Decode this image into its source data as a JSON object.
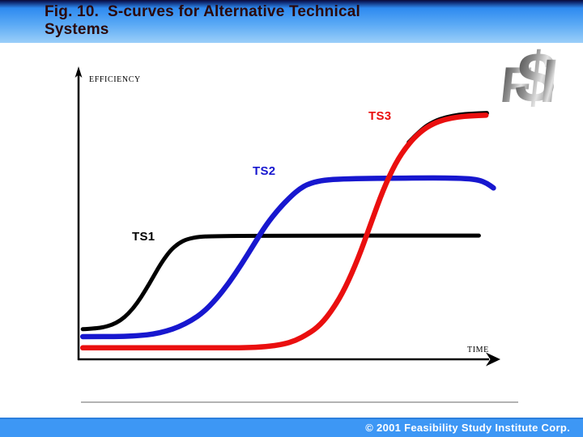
{
  "slide": {
    "title_line1": "Fig. 10.  S-curves for Alternative Technical",
    "title_line2": "Systems",
    "logo_chars": [
      "F",
      "$",
      "I"
    ],
    "footer_copyright": "© 2001 Feasibility Study Institute Corp."
  },
  "colors": {
    "header_gradient_top": "#0b0b38",
    "header_gradient_mid": "#2e8af0",
    "header_gradient_bottom": "#9bcff9",
    "title_text": "#2b0808",
    "logo_gray_dark": "#4a4a4a",
    "logo_gray_light": "#e2e2e2",
    "separator": "#b3b3b3",
    "footer_bg": "#3d97f5",
    "footer_text": "#ffffff",
    "axis": "#000000"
  },
  "chart_data": {
    "type": "line",
    "title": "",
    "xlabel": "TIME",
    "ylabel": "EFFICIENCY",
    "grid": false,
    "axis_ticks": "none",
    "x_range_percent": [
      0,
      100
    ],
    "y_range_percent": [
      0,
      100
    ],
    "series": [
      {
        "name": "TS1",
        "color": "#000000",
        "points": [
          [
            1,
            10.5
          ],
          [
            4,
            10.8
          ],
          [
            6,
            11.2
          ],
          [
            8,
            12
          ],
          [
            10,
            13.5
          ],
          [
            12,
            16
          ],
          [
            14,
            19.5
          ],
          [
            16,
            24
          ],
          [
            18,
            29
          ],
          [
            20,
            34
          ],
          [
            22,
            38
          ],
          [
            24,
            40.5
          ],
          [
            26,
            42
          ],
          [
            29,
            42.8
          ],
          [
            33,
            43
          ],
          [
            40,
            43.1
          ],
          [
            50,
            43.1
          ],
          [
            62,
            43.2
          ],
          [
            75,
            43.2
          ],
          [
            88,
            43.2
          ],
          [
            96,
            43.2
          ]
        ]
      },
      {
        "name": "TS2",
        "color": "#1717cf",
        "points": [
          [
            1,
            7.9
          ],
          [
            6,
            7.9
          ],
          [
            11,
            8
          ],
          [
            15,
            8.3
          ],
          [
            18,
            8.8
          ],
          [
            21,
            9.8
          ],
          [
            24,
            11.3
          ],
          [
            27,
            13.5
          ],
          [
            30,
            16.5
          ],
          [
            33,
            21
          ],
          [
            36,
            26.5
          ],
          [
            39,
            33
          ],
          [
            42,
            40
          ],
          [
            45,
            47
          ],
          [
            48,
            52.5
          ],
          [
            51,
            57
          ],
          [
            53,
            59.5
          ],
          [
            55,
            61.2
          ],
          [
            58,
            62.4
          ],
          [
            62,
            62.9
          ],
          [
            68,
            63.1
          ],
          [
            75,
            63.2
          ],
          [
            82,
            63.3
          ],
          [
            88,
            63.3
          ],
          [
            93,
            63.1
          ],
          [
            96,
            62.6
          ],
          [
            98,
            61.4
          ],
          [
            99.5,
            59.8
          ]
        ]
      },
      {
        "name": "TS3",
        "color": "#ea0f0f",
        "edge_artifact": true,
        "points": [
          [
            1,
            4
          ],
          [
            15,
            4
          ],
          [
            30,
            4
          ],
          [
            40,
            4
          ],
          [
            45,
            4.4
          ],
          [
            49,
            5.2
          ],
          [
            52,
            6.5
          ],
          [
            55,
            8.8
          ],
          [
            58,
            12
          ],
          [
            61,
            17.5
          ],
          [
            64,
            25
          ],
          [
            67,
            35
          ],
          [
            70,
            47
          ],
          [
            73,
            59
          ],
          [
            76,
            68.5
          ],
          [
            79,
            75
          ],
          [
            82,
            79.5
          ],
          [
            85,
            82.3
          ],
          [
            88,
            83.8
          ],
          [
            91,
            84.6
          ],
          [
            94,
            85
          ],
          [
            97.7,
            85.2
          ]
        ]
      }
    ]
  }
}
